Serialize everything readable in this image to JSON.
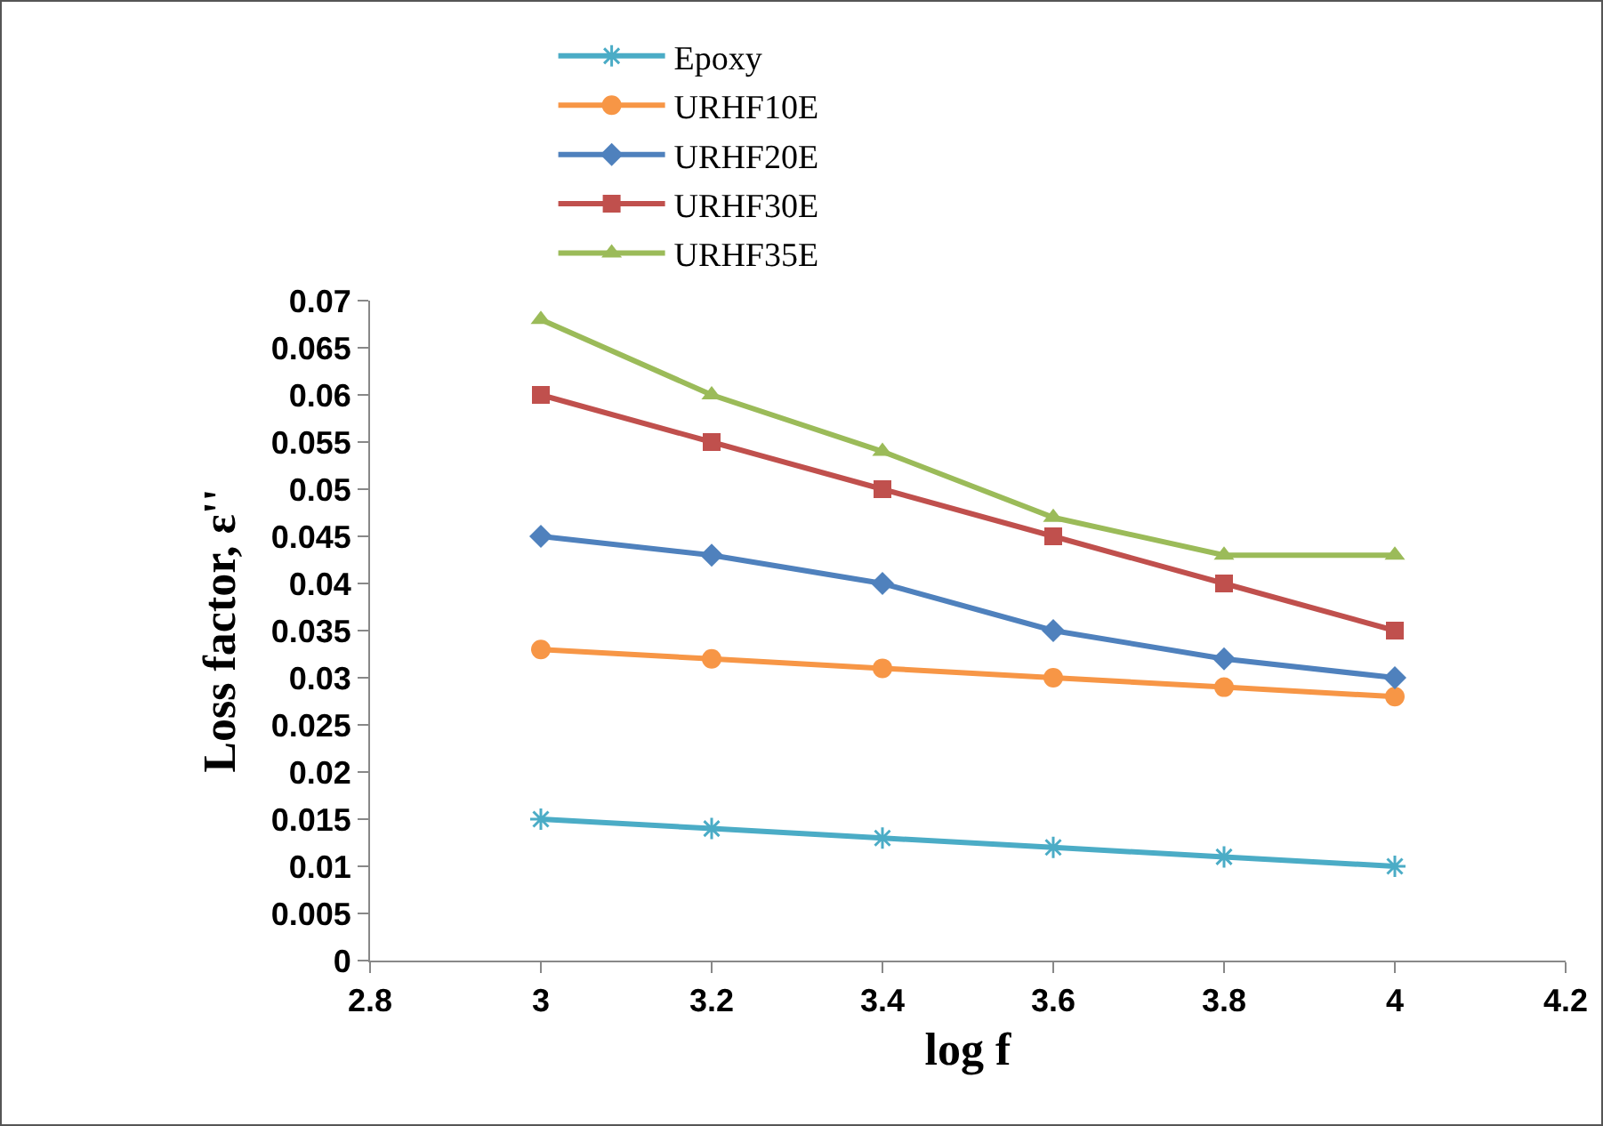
{
  "chart_data": {
    "type": "line",
    "xlabel": "log f",
    "ylabel": "Loss factor, ε''",
    "x": [
      3,
      3.2,
      3.4,
      3.6,
      3.8,
      4
    ],
    "xlim": [
      2.8,
      4.2
    ],
    "xticks": [
      2.8,
      3,
      3.2,
      3.4,
      3.6,
      3.8,
      4,
      4.2
    ],
    "ylim": [
      0,
      0.07
    ],
    "yticks": [
      0,
      0.005,
      0.01,
      0.015,
      0.02,
      0.025,
      0.03,
      0.035,
      0.04,
      0.045,
      0.05,
      0.055,
      0.06,
      0.065,
      0.07
    ],
    "grid": false,
    "legend": "top",
    "line_style": "solid",
    "series": [
      {
        "name": "Epoxy",
        "color": "#4bacc6",
        "marker": "cross",
        "values": [
          0.015,
          0.014,
          0.013,
          0.012,
          0.011,
          0.01
        ]
      },
      {
        "name": "URHF10E",
        "color": "#f79646",
        "marker": "circle",
        "values": [
          0.033,
          0.032,
          0.031,
          0.03,
          0.029,
          0.028
        ]
      },
      {
        "name": "URHF20E",
        "color": "#4f81bd",
        "marker": "diamond",
        "values": [
          0.045,
          0.043,
          0.04,
          0.035,
          0.032,
          0.03
        ]
      },
      {
        "name": "URHF30E",
        "color": "#c0504d",
        "marker": "square",
        "values": [
          0.06,
          0.055,
          0.05,
          0.045,
          0.04,
          0.035
        ]
      },
      {
        "name": "URHF35E",
        "color": "#9bbb59",
        "marker": "triangle",
        "values": [
          0.068,
          0.06,
          0.054,
          0.047,
          0.043,
          0.043
        ]
      }
    ]
  }
}
